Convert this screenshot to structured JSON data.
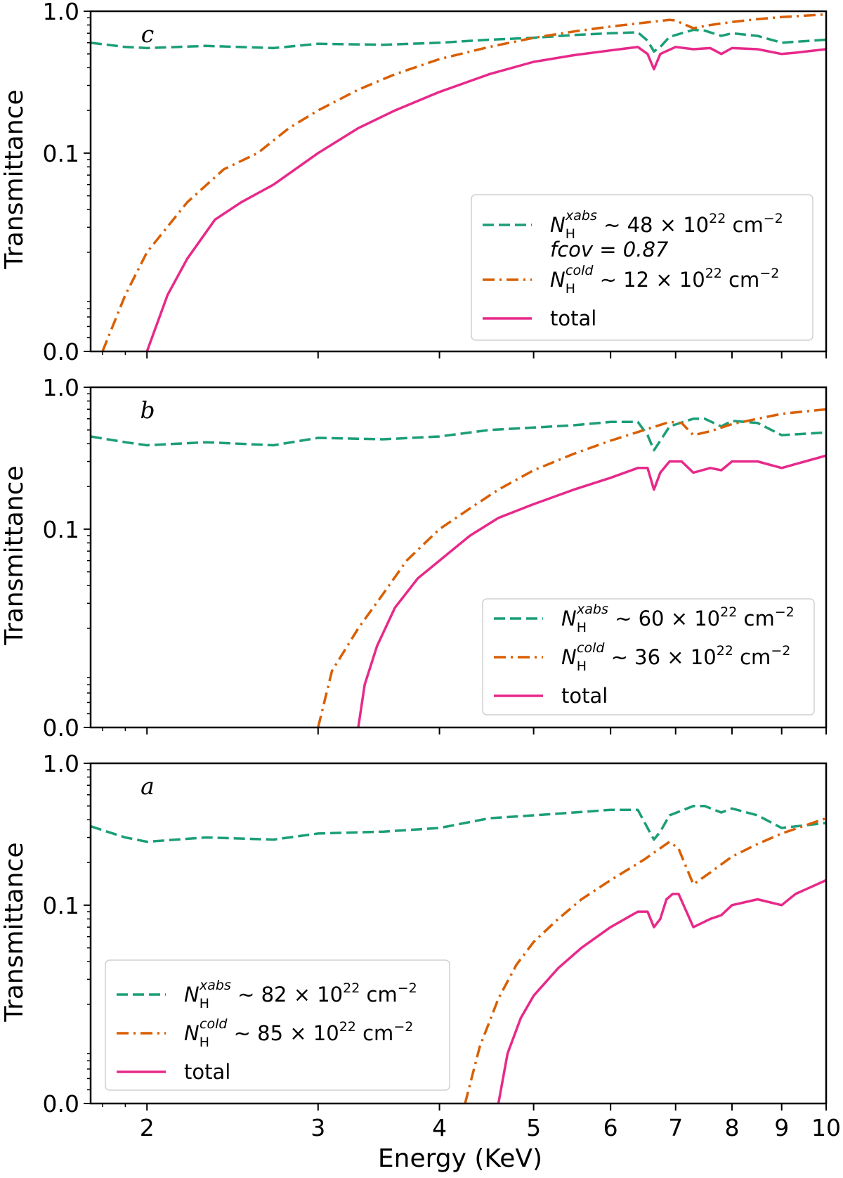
{
  "figure": {
    "xlabel": "Energy (KeV)",
    "ylabel": "Transmittance"
  },
  "colors": {
    "xabs": "#1b9e77",
    "cold": "#d95f02",
    "total": "#e7298a"
  },
  "chart_data": [
    {
      "type": "line",
      "panel_label": "c",
      "xlabel": "",
      "ylabel": "Transmittance",
      "xscale": "log",
      "yscale": "log",
      "xlim": [
        1.75,
        10
      ],
      "y_ticks": [
        "0.0",
        "0.1",
        "1.0"
      ],
      "legend_position": "center-right",
      "grid": false,
      "series": [
        {
          "key": "xabs",
          "legend": "N_H^xabs ~ 48 × 10^22 cm^-2",
          "legend_parts": {
            "sym": "N",
            "sub": "H",
            "sup": "xabs",
            "rest": " ∼ 48 × 10",
            "exp": "22",
            "unit": " cm",
            "uexp": "−2",
            "line2": "fcov = 0.87"
          },
          "style": "dashed",
          "x": [
            1.75,
            1.9,
            2.0,
            2.3,
            2.7,
            3.0,
            3.5,
            4.0,
            4.5,
            5.0,
            5.5,
            6.0,
            6.4,
            6.55,
            6.65,
            6.75,
            6.9,
            7.3,
            7.5,
            7.8,
            8.0,
            8.5,
            9.0,
            10.0
          ],
          "y": [
            0.6,
            0.56,
            0.55,
            0.57,
            0.55,
            0.59,
            0.58,
            0.6,
            0.63,
            0.65,
            0.68,
            0.7,
            0.71,
            0.62,
            0.52,
            0.56,
            0.66,
            0.74,
            0.73,
            0.67,
            0.7,
            0.67,
            0.6,
            0.63
          ]
        },
        {
          "key": "cold",
          "legend": "N_H^cold ~ 12 × 10^22 cm^-2",
          "legend_parts": {
            "sym": "N",
            "sub": "H",
            "sup": "cold",
            "rest": " ∼ 12 × 10",
            "exp": "22",
            "unit": " cm",
            "uexp": "−2"
          },
          "style": "dashdot",
          "x": [
            1.8,
            1.9,
            2.0,
            2.2,
            2.4,
            2.6,
            2.8,
            3.0,
            3.3,
            3.6,
            4.0,
            4.5,
            5.0,
            5.5,
            6.0,
            6.5,
            6.9,
            7.0,
            7.3,
            7.6,
            8.0,
            8.5,
            9.0,
            10.0
          ],
          "y": [
            0.004,
            0.01,
            0.02,
            0.045,
            0.077,
            0.1,
            0.15,
            0.2,
            0.28,
            0.36,
            0.46,
            0.56,
            0.65,
            0.72,
            0.78,
            0.83,
            0.87,
            0.86,
            0.76,
            0.8,
            0.84,
            0.88,
            0.91,
            0.95
          ]
        },
        {
          "key": "total",
          "legend": "total",
          "legend_parts": {
            "rest": "total"
          },
          "style": "solid",
          "x": [
            2.0,
            2.1,
            2.2,
            2.35,
            2.5,
            2.7,
            3.0,
            3.3,
            3.6,
            4.0,
            4.5,
            5.0,
            5.5,
            6.0,
            6.4,
            6.55,
            6.65,
            6.75,
            7.0,
            7.3,
            7.6,
            7.8,
            8.0,
            8.5,
            9.0,
            9.3,
            10.0
          ],
          "y": [
            0.004,
            0.01,
            0.018,
            0.034,
            0.045,
            0.06,
            0.1,
            0.15,
            0.2,
            0.27,
            0.36,
            0.44,
            0.49,
            0.53,
            0.56,
            0.5,
            0.39,
            0.5,
            0.56,
            0.54,
            0.55,
            0.5,
            0.55,
            0.54,
            0.5,
            0.51,
            0.54
          ]
        }
      ]
    },
    {
      "type": "line",
      "panel_label": "b",
      "xlabel": "",
      "ylabel": "Transmittance",
      "xscale": "log",
      "yscale": "log",
      "xlim": [
        1.75,
        10
      ],
      "y_ticks": [
        "0.0",
        "0.1",
        "1.0"
      ],
      "legend_position": "lower-right",
      "grid": false,
      "series": [
        {
          "key": "xabs",
          "legend": "N_H^xabs ~ 60 × 10^22 cm^-2",
          "legend_parts": {
            "sym": "N",
            "sub": "H",
            "sup": "xabs",
            "rest": " ∼ 60 × 10",
            "exp": "22",
            "unit": " cm",
            "uexp": "−2"
          },
          "style": "dashed",
          "x": [
            1.75,
            1.9,
            2.0,
            2.3,
            2.7,
            3.0,
            3.5,
            4.0,
            4.5,
            5.0,
            5.5,
            6.0,
            6.4,
            6.55,
            6.65,
            6.75,
            6.9,
            7.3,
            7.5,
            7.8,
            8.0,
            8.5,
            9.0,
            10.0
          ],
          "y": [
            0.45,
            0.41,
            0.39,
            0.41,
            0.39,
            0.44,
            0.43,
            0.45,
            0.5,
            0.52,
            0.54,
            0.57,
            0.57,
            0.46,
            0.36,
            0.42,
            0.53,
            0.6,
            0.6,
            0.53,
            0.58,
            0.56,
            0.46,
            0.48
          ]
        },
        {
          "key": "cold",
          "legend": "N_H^cold ~ 36 × 10^22 cm^-2",
          "legend_parts": {
            "sym": "N",
            "sub": "H",
            "sup": "cold",
            "rest": " ∼ 36 × 10",
            "exp": "22",
            "unit": " cm",
            "uexp": "−2"
          },
          "style": "dashdot",
          "x": [
            3.0,
            3.1,
            3.3,
            3.5,
            3.7,
            4.0,
            4.3,
            4.6,
            5.0,
            5.5,
            6.0,
            6.5,
            6.9,
            7.1,
            7.3,
            7.6,
            8.0,
            8.5,
            9.0,
            10.0
          ],
          "y": [
            0.004,
            0.01,
            0.02,
            0.035,
            0.06,
            0.1,
            0.14,
            0.19,
            0.26,
            0.34,
            0.42,
            0.5,
            0.57,
            0.56,
            0.46,
            0.49,
            0.55,
            0.6,
            0.65,
            0.7
          ]
        },
        {
          "key": "total",
          "legend": "total",
          "legend_parts": {
            "rest": "total"
          },
          "style": "solid",
          "x": [
            3.3,
            3.35,
            3.45,
            3.6,
            3.8,
            4.0,
            4.3,
            4.6,
            5.0,
            5.5,
            6.0,
            6.4,
            6.55,
            6.65,
            6.75,
            6.9,
            7.1,
            7.3,
            7.6,
            7.8,
            8.0,
            8.5,
            9.0,
            10.0
          ],
          "y": [
            0.004,
            0.008,
            0.015,
            0.028,
            0.045,
            0.06,
            0.09,
            0.12,
            0.15,
            0.19,
            0.23,
            0.27,
            0.27,
            0.19,
            0.25,
            0.3,
            0.3,
            0.25,
            0.27,
            0.26,
            0.3,
            0.3,
            0.27,
            0.33
          ]
        }
      ]
    },
    {
      "type": "line",
      "panel_label": "a",
      "xlabel": "Energy (KeV)",
      "ylabel": "Transmittance",
      "xscale": "log",
      "yscale": "log",
      "xlim": [
        1.75,
        10
      ],
      "y_ticks": [
        "0.0",
        "0.1",
        "1.0"
      ],
      "x_ticks": [
        "2",
        "3",
        "4",
        "5",
        "6",
        "7",
        "8",
        "9",
        "10"
      ],
      "legend_position": "lower-left",
      "grid": false,
      "series": [
        {
          "key": "xabs",
          "legend": "N_H^xabs ~ 82 × 10^22 cm^-2",
          "legend_parts": {
            "sym": "N",
            "sub": "H",
            "sup": "xabs",
            "rest": " ∼ 82 × 10",
            "exp": "22",
            "unit": " cm",
            "uexp": "−2"
          },
          "style": "dashed",
          "x": [
            1.75,
            1.9,
            2.0,
            2.3,
            2.7,
            3.0,
            3.5,
            4.0,
            4.5,
            5.0,
            5.5,
            6.0,
            6.4,
            6.55,
            6.65,
            6.75,
            6.9,
            7.3,
            7.5,
            7.8,
            8.0,
            8.5,
            9.0,
            10.0
          ],
          "y": [
            0.36,
            0.3,
            0.28,
            0.3,
            0.29,
            0.32,
            0.33,
            0.35,
            0.41,
            0.43,
            0.45,
            0.47,
            0.47,
            0.35,
            0.29,
            0.33,
            0.43,
            0.5,
            0.5,
            0.45,
            0.48,
            0.43,
            0.35,
            0.38
          ]
        },
        {
          "key": "cold",
          "legend": "N_H^cold ~ 85 × 10^22 cm^-2",
          "legend_parts": {
            "sym": "N",
            "sub": "H",
            "sup": "cold",
            "rest": " ∼ 85 × 10",
            "exp": "22",
            "unit": " cm",
            "uexp": "−2"
          },
          "style": "dashdot",
          "x": [
            4.25,
            4.4,
            4.6,
            4.8,
            5.0,
            5.3,
            5.6,
            6.0,
            6.5,
            6.9,
            7.05,
            7.3,
            7.6,
            8.0,
            8.5,
            9.0,
            10.0
          ],
          "y": [
            0.004,
            0.01,
            0.022,
            0.038,
            0.055,
            0.08,
            0.11,
            0.15,
            0.21,
            0.28,
            0.25,
            0.14,
            0.17,
            0.22,
            0.27,
            0.32,
            0.41
          ]
        },
        {
          "key": "total",
          "legend": "total",
          "legend_parts": {
            "rest": "total"
          },
          "style": "solid",
          "x": [
            4.6,
            4.7,
            4.85,
            5.0,
            5.3,
            5.6,
            6.0,
            6.4,
            6.55,
            6.65,
            6.75,
            6.85,
            6.95,
            7.05,
            7.3,
            7.6,
            7.8,
            8.0,
            8.5,
            9.0,
            9.3,
            10.0
          ],
          "y": [
            0.004,
            0.009,
            0.016,
            0.023,
            0.036,
            0.05,
            0.07,
            0.09,
            0.09,
            0.07,
            0.08,
            0.11,
            0.12,
            0.12,
            0.07,
            0.08,
            0.085,
            0.1,
            0.11,
            0.1,
            0.12,
            0.15
          ]
        }
      ]
    }
  ]
}
